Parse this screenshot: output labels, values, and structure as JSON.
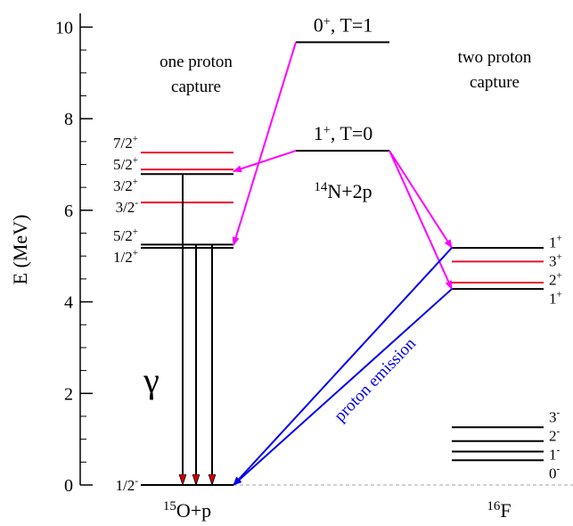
{
  "chart_data": {
    "type": "level-scheme",
    "ylabel": "E (MeV)",
    "ylim": [
      0,
      10.3
    ],
    "yticks": [
      0,
      2,
      4,
      6,
      8,
      10
    ],
    "columns": [
      {
        "mass": "15",
        "name": "O+p",
        "header": [
          "one proton",
          "capture"
        ],
        "levels": [
          {
            "J": "7/2",
            "parity": "+",
            "energy": 7.26,
            "color": "#e8102e"
          },
          {
            "J": "5/2",
            "parity": "+",
            "energy": 6.89,
            "color": "#e8102e"
          },
          {
            "J": "3/2",
            "parity": "+",
            "energy": 6.79,
            "color": "#000000"
          },
          {
            "J": "3/2",
            "parity": "-",
            "energy": 6.17,
            "color": "#e8102e"
          },
          {
            "J": "5/2",
            "parity": "+",
            "energy": 5.25,
            "color": "#000000"
          },
          {
            "J": "1/2",
            "parity": "+",
            "energy": 5.18,
            "color": "#000000"
          },
          {
            "J": "1/2",
            "parity": "-",
            "energy": 0,
            "color": "#000000"
          }
        ]
      },
      {
        "mass": "14",
        "name": "N+2p",
        "levels": [
          {
            "J": "0",
            "parity": "+",
            "suffix": ", T=1",
            "energy": 9.67,
            "color": "#000000"
          },
          {
            "J": "1",
            "parity": "+",
            "suffix": ", T=0",
            "energy": 7.3,
            "color": "#000000"
          }
        ]
      },
      {
        "mass": "16",
        "name": "F",
        "header": [
          "two proton",
          "capture"
        ],
        "levels": [
          {
            "J": "1",
            "parity": "+",
            "energy": 5.18,
            "color": "#000000"
          },
          {
            "J": "3",
            "parity": "+",
            "energy": 4.88,
            "color": "#e8102e"
          },
          {
            "J": "2",
            "parity": "+",
            "energy": 4.42,
            "color": "#e8102e"
          },
          {
            "J": "1",
            "parity": "+",
            "energy": 4.28,
            "color": "#000000"
          },
          {
            "J": "3",
            "parity": "-",
            "energy": 1.26,
            "color": "#000000"
          },
          {
            "J": "2",
            "parity": "-",
            "energy": 0.96,
            "color": "#000000"
          },
          {
            "J": "1",
            "parity": "-",
            "energy": 0.73,
            "color": "#000000"
          },
          {
            "J": "0",
            "parity": "-",
            "energy": 0.54,
            "color": "#000000"
          }
        ]
      }
    ],
    "gamma_label": "γ",
    "emission_label": "proton emission"
  }
}
